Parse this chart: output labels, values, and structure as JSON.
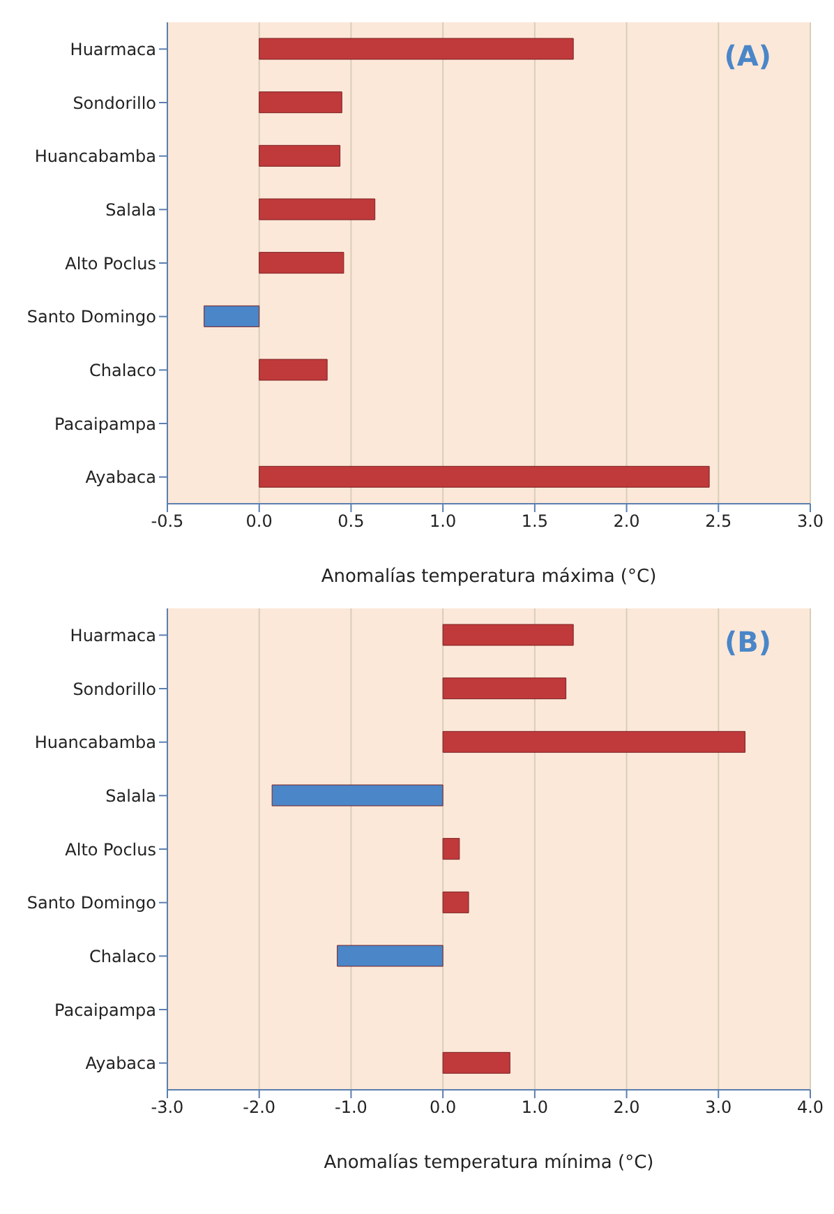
{
  "chart_data": [
    {
      "type": "bar",
      "orientation": "horizontal",
      "categories": [
        "Huarmaca",
        "Sondorillo",
        "Huancabamba",
        "Salala",
        "Alto Poclus",
        "Santo Domingo",
        "Chalaco",
        "Pacaipampa",
        "Ayabaca"
      ],
      "values": [
        1.71,
        0.45,
        0.44,
        0.63,
        0.46,
        -0.3,
        0.37,
        0,
        2.45
      ],
      "colors": [
        "#c0393b",
        "#c0393b",
        "#c0393b",
        "#c0393b",
        "#c0393b",
        "#4a86c8",
        "#c0393b",
        "#c0393b",
        "#c0393b"
      ],
      "xlabel": "Anomalías temperatura máxima (°C)",
      "xlim": [
        -0.5,
        3.0
      ],
      "xticks": [
        {
          "value": -0.5,
          "label": "-0.5"
        },
        {
          "value": 0,
          "label": "0.0"
        },
        {
          "value": 0.5,
          "label": "0.5"
        },
        {
          "value": 1,
          "label": "1.0"
        },
        {
          "value": 1.5,
          "label": "1.5"
        },
        {
          "value": 2,
          "label": "2.0"
        },
        {
          "value": 2.5,
          "label": "2.5"
        },
        {
          "value": 3,
          "label": "3.0"
        }
      ],
      "grid": "x",
      "annotations": [
        "(A)"
      ]
    },
    {
      "type": "bar",
      "orientation": "horizontal",
      "categories": [
        "Huarmaca",
        "Sondorillo",
        "Huancabamba",
        "Salala",
        "Alto Poclus",
        "Santo Domingo",
        "Chalaco",
        "Pacaipampa",
        "Ayabaca"
      ],
      "values": [
        1.42,
        1.34,
        3.29,
        -1.86,
        0.18,
        0.28,
        -1.15,
        0,
        0.73
      ],
      "colors": [
        "#c0393b",
        "#c0393b",
        "#c0393b",
        "#4a86c8",
        "#c0393b",
        "#c0393b",
        "#4a86c8",
        "#c0393b",
        "#c0393b"
      ],
      "xlabel": "Anomalías temperatura mínima (°C)",
      "xlim": [
        -3.0,
        4.0
      ],
      "xticks": [
        {
          "value": -3,
          "label": "-3.0"
        },
        {
          "value": -2,
          "label": "-2.0"
        },
        {
          "value": -1,
          "label": "-1.0"
        },
        {
          "value": 0,
          "label": "0.0"
        },
        {
          "value": 1,
          "label": "1.0"
        },
        {
          "value": 2,
          "label": "2.0"
        },
        {
          "value": 3,
          "label": "3.0"
        },
        {
          "value": 4,
          "label": "4.0"
        }
      ],
      "grid": "x",
      "annotations": [
        "(B)"
      ]
    }
  ]
}
